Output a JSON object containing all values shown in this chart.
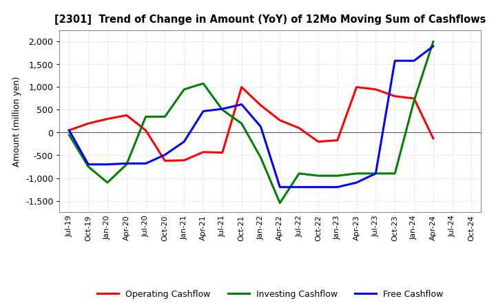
{
  "title": "[2301]  Trend of Change in Amount (YoY) of 12Mo Moving Sum of Cashflows",
  "ylabel": "Amount (million yen)",
  "background_color": "#ffffff",
  "grid_color": "#aaaaaa",
  "tick_labels": [
    "Jul-19",
    "Oct-19",
    "Jan-20",
    "Apr-20",
    "Jul-20",
    "Oct-20",
    "Jan-21",
    "Apr-21",
    "Jul-21",
    "Oct-21",
    "Jan-22",
    "Apr-22",
    "Jul-22",
    "Oct-22",
    "Jan-23",
    "Apr-23",
    "Jul-23",
    "Oct-23",
    "Jan-24",
    "Apr-24",
    "Jul-24",
    "Oct-24"
  ],
  "operating": [
    50,
    200,
    300,
    380,
    50,
    -620,
    -610,
    -430,
    -440,
    1000,
    600,
    270,
    100,
    -200,
    -170,
    1000,
    950,
    800,
    750,
    -130,
    null,
    null
  ],
  "investing": [
    -50,
    -750,
    -1100,
    -700,
    350,
    350,
    950,
    1080,
    500,
    200,
    -550,
    -1550,
    -900,
    -950,
    -950,
    -900,
    -900,
    -900,
    700,
    2000,
    null,
    null
  ],
  "free": [
    50,
    -700,
    -700,
    -680,
    -680,
    -490,
    -200,
    470,
    520,
    620,
    130,
    -1200,
    -1200,
    -1200,
    -1200,
    -1100,
    -900,
    1580,
    1580,
    1900,
    null,
    null
  ],
  "ylim": [
    -1750,
    2250
  ],
  "yticks": [
    -1500,
    -1000,
    -500,
    0,
    500,
    1000,
    1500,
    2000
  ],
  "operating_color": "#ff0000",
  "investing_color": "#008000",
  "free_color": "#0000ff",
  "line_width": 2.2
}
